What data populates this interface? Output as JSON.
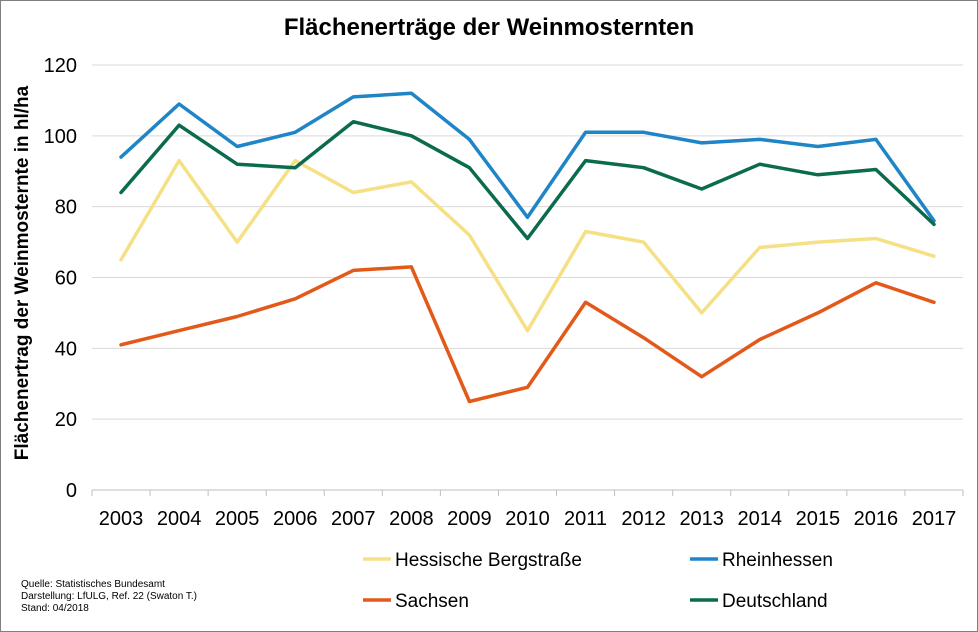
{
  "chart_data": {
    "type": "line",
    "title": "Flächenerträge der Weinmosternten",
    "ylabel": "Flächenertrag der Weinmosternte in hl/ha",
    "xlabel": "",
    "ylim": [
      0,
      120
    ],
    "yticks": [
      0,
      20,
      40,
      60,
      80,
      100,
      120
    ],
    "grid": true,
    "legend_position": "bottom",
    "categories": [
      "2003",
      "2004",
      "2005",
      "2006",
      "2007",
      "2008",
      "2009",
      "2010",
      "2011",
      "2012",
      "2013",
      "2014",
      "2015",
      "2016",
      "2017"
    ],
    "series": [
      {
        "name": "Hessische Bergstraße",
        "color": "#f5e086",
        "values": [
          65,
          93,
          70,
          93,
          84,
          87,
          72,
          45,
          73,
          70,
          50,
          68.5,
          70,
          71,
          66
        ]
      },
      {
        "name": "Rheinhessen",
        "color": "#1f85c6",
        "values": [
          94,
          109,
          97,
          101,
          111,
          112,
          99,
          77,
          101,
          101,
          98,
          99,
          97,
          99,
          76
        ]
      },
      {
        "name": "Sachsen",
        "color": "#e2591a",
        "values": [
          41,
          45,
          49,
          54,
          62,
          63,
          25,
          29,
          53,
          43,
          32,
          42.5,
          50,
          58.5,
          53
        ]
      },
      {
        "name": "Deutschland",
        "color": "#0b6b4e",
        "values": [
          84,
          103,
          92,
          91,
          104,
          100,
          91,
          71,
          93,
          91,
          85,
          92,
          89,
          90.5,
          75
        ]
      }
    ]
  },
  "source": {
    "line1": "Quelle: Statistisches Bundesamt",
    "line2": "Darstellung: LfULG, Ref. 22 (Swaton T.)",
    "line3": "Stand: 04/2018"
  }
}
